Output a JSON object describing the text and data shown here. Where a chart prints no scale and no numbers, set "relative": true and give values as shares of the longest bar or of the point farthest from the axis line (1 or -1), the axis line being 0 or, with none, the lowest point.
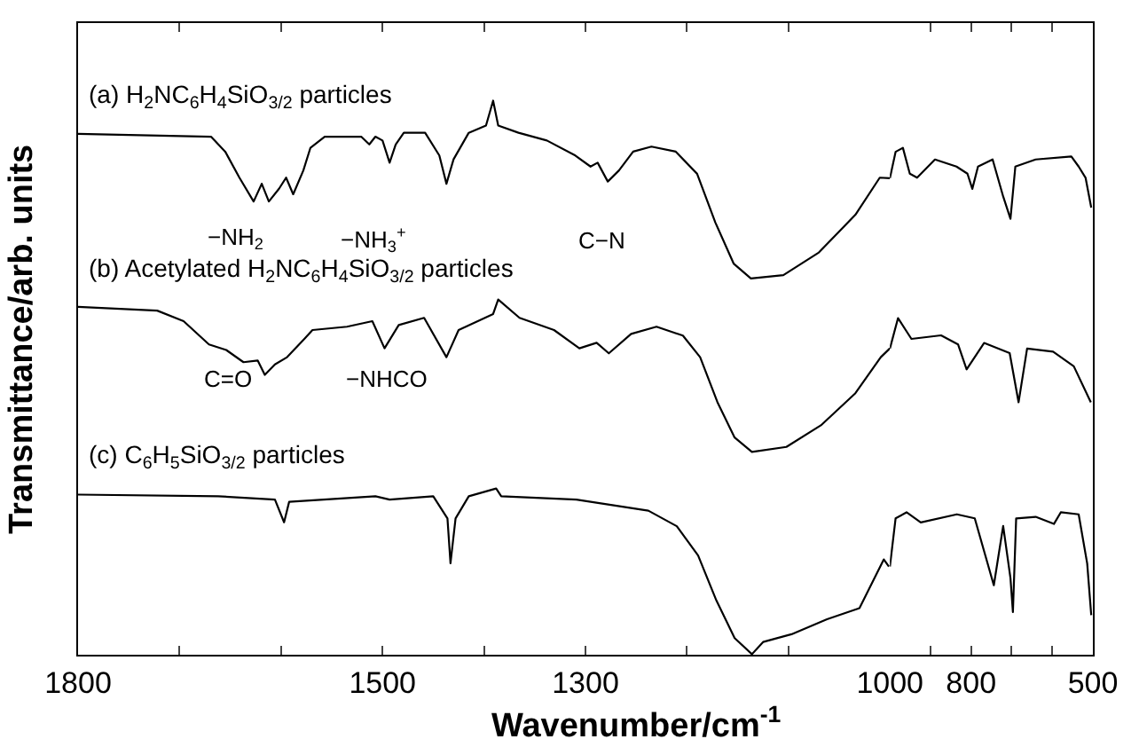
{
  "chart_data": [
    {
      "type": "line",
      "relative": true,
      "xlabel": "Wavenumber/cm$^{-1}$",
      "ylabel": "Transmittance/arb. units",
      "xlim": [
        1800,
        1000
      ],
      "xticks": [
        1800,
        {
          "value": 1700,
          "label": null
        },
        {
          "value": 1600,
          "label": null
        },
        1500,
        {
          "value": 1400,
          "label": null
        },
        1300,
        {
          "value": 1200,
          "label": null
        },
        {
          "value": 1100,
          "label": null
        }
      ],
      "legend": false,
      "marker": "none",
      "line_style": "solid",
      "annotations": [
        "−NH$_{2}$",
        "−NH$_{3}$$^{+}$",
        "C−N",
        "C=O",
        "−NHCO"
      ],
      "series": [
        {
          "name": "(a) H$_{2}$NC$_{6}$H$_{4}$SiO$_{3/2}$ particles",
          "color": "#000000",
          "x": [
            1800,
            1669,
            1655,
            1641,
            1627,
            1619,
            1612,
            1602,
            1595,
            1588,
            1578,
            1571,
            1557,
            1521,
            1513,
            1507,
            1500,
            1493,
            1487,
            1479,
            1458,
            1444,
            1437,
            1430,
            1415,
            1398,
            1391,
            1386,
            1366,
            1338,
            1310,
            1295,
            1288,
            1278,
            1267,
            1253,
            1235,
            1211,
            1190,
            1172,
            1154,
            1137,
            1105,
            1070,
            1034,
            1010,
            1000
          ],
          "values": [
            0.94,
            0.935,
            0.908,
            0.861,
            0.818,
            0.85,
            0.818,
            0.841,
            0.861,
            0.831,
            0.874,
            0.915,
            0.935,
            0.935,
            0.921,
            0.935,
            0.928,
            0.888,
            0.921,
            0.942,
            0.942,
            0.901,
            0.85,
            0.894,
            0.942,
            0.955,
            1,
            0.955,
            0.942,
            0.928,
            0.901,
            0.881,
            0.888,
            0.854,
            0.874,
            0.908,
            0.917,
            0.908,
            0.868,
            0.78,
            0.706,
            0.679,
            0.685,
            0.726,
            0.794,
            0.861,
            0.86
          ]
        },
        {
          "name": "(b) Acetylated H$_{2}$NC$_{6}$H$_{4}$SiO$_{3/2}$ particles",
          "color": "#000000",
          "x": [
            1800,
            1722,
            1696,
            1671,
            1654,
            1637,
            1623,
            1616,
            1606,
            1594,
            1577,
            1569,
            1535,
            1510,
            1498,
            1484,
            1459,
            1437,
            1425,
            1391,
            1386,
            1365,
            1331,
            1306,
            1289,
            1277,
            1255,
            1230,
            1204,
            1187,
            1170,
            1153,
            1136,
            1102,
            1068,
            1034,
            1009,
            1000
          ],
          "values": [
            0.628,
            0.621,
            0.602,
            0.56,
            0.55,
            0.528,
            0.531,
            0.505,
            0.524,
            0.537,
            0.57,
            0.586,
            0.592,
            0.602,
            0.553,
            0.595,
            0.608,
            0.537,
            0.586,
            0.615,
            0.641,
            0.608,
            0.586,
            0.553,
            0.563,
            0.544,
            0.579,
            0.592,
            0.576,
            0.537,
            0.456,
            0.392,
            0.366,
            0.375,
            0.414,
            0.472,
            0.537,
            0.553
          ]
        },
        {
          "name": "(c) C$_{6}$H$_{5}$SiO$_{3/2}$ particles",
          "color": "#000000",
          "x": [
            1800,
            1662,
            1606,
            1597,
            1592,
            1507,
            1493,
            1450,
            1436,
            1433,
            1428,
            1415,
            1388,
            1383,
            1309,
            1238,
            1210,
            1189,
            1171,
            1153,
            1136,
            1125,
            1097,
            1062,
            1030,
            1006,
            1001
          ],
          "values": [
            0.289,
            0.286,
            0.28,
            0.239,
            0.276,
            0.286,
            0.28,
            0.286,
            0.246,
            0.165,
            0.246,
            0.286,
            0.3,
            0.286,
            0.28,
            0.26,
            0.232,
            0.179,
            0.098,
            0.03,
            0.001,
            0.023,
            0.037,
            0.064,
            0.084,
            0.172,
            0.159
          ]
        }
      ]
    },
    {
      "type": "line",
      "relative": true,
      "xlim": [
        1000,
        500
      ],
      "xticks": [
        1000,
        {
          "value": 900,
          "label": null
        },
        800,
        {
          "value": 700,
          "label": null
        },
        {
          "value": 600,
          "label": null
        },
        500
      ],
      "legend": false,
      "marker": "none",
      "line_style": "solid",
      "series": [
        {
          "color": "#000000",
          "x": [
            1000,
            986,
            968,
            951,
            933,
            889,
            836,
            809,
            797,
            783,
            747,
            721,
            703,
            691,
            641,
            553,
            535,
            518,
            504
          ],
          "values": [
            0.94,
            0.992,
            1,
            0.949,
            0.941,
            0.977,
            0.963,
            0.949,
            0.919,
            0.963,
            0.977,
            0.904,
            0.86,
            0.963,
            0.977,
            0.983,
            0.963,
            0.941,
            0.882
          ]
        },
        {
          "color": "#000000",
          "x": [
            1000,
            980,
            947,
            874,
            832,
            811,
            768,
            705,
            683,
            662,
            598,
            547,
            505
          ],
          "values": [
            0.604,
            0.664,
            0.623,
            0.63,
            0.612,
            0.563,
            0.615,
            0.595,
            0.498,
            0.604,
            0.598,
            0.569,
            0.498
          ]
        },
        {
          "color": "#000000",
          "x": [
            1000,
            986,
            959,
            924,
            835,
            791,
            765,
            744,
            721,
            703,
            697,
            689,
            641,
            596,
            579,
            535,
            514,
            504
          ],
          "values": [
            0.174,
            0.269,
            0.281,
            0.261,
            0.277,
            0.269,
            0.196,
            0.137,
            0.254,
            0.151,
            0.084,
            0.269,
            0.272,
            0.258,
            0.281,
            0.277,
            0.18,
            0.078
          ]
        }
      ]
    }
  ]
}
